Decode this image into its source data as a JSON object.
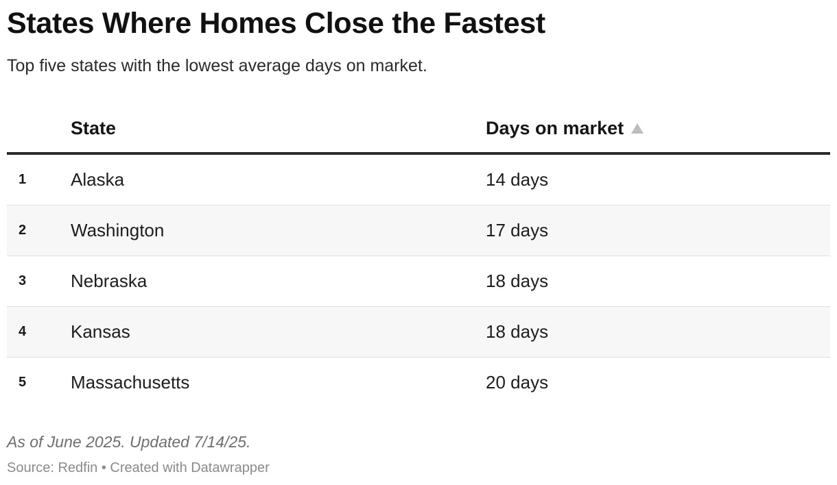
{
  "title": "States Where Homes Close the Fastest",
  "subtitle": "Top five states with the lowest average days on market.",
  "table": {
    "columns": {
      "state": "State",
      "days": "Days on market"
    },
    "sort": {
      "column": "Days on market",
      "direction": "ascending",
      "icon": "sort-ascending-icon"
    }
  },
  "note": "As of June 2025. Updated 7/14/25.",
  "footer": {
    "source": "Source: Redfin • Created with Datawrapper"
  },
  "colors": {
    "header_rule": "#2b2b2b",
    "alt_row_background": "#f7f7f7",
    "row_divider": "#dedede",
    "sort_arrow": "#bdbdbd"
  },
  "chart_data": {
    "type": "table",
    "title": "States Where Homes Close the Fastest",
    "subtitle": "Top five states with the lowest average days on market.",
    "columns": [
      "State",
      "Days on market"
    ],
    "rows": [
      {
        "rank": "1",
        "state": "Alaska",
        "days": "14 days",
        "value": 14
      },
      {
        "rank": "2",
        "state": "Washington",
        "days": "17 days",
        "value": 17
      },
      {
        "rank": "3",
        "state": "Nebraska",
        "days": "18 days",
        "value": 18
      },
      {
        "rank": "4",
        "state": "Kansas",
        "days": "18 days",
        "value": 18
      },
      {
        "rank": "5",
        "state": "Massachusetts",
        "days": "20 days",
        "value": 20
      }
    ]
  }
}
